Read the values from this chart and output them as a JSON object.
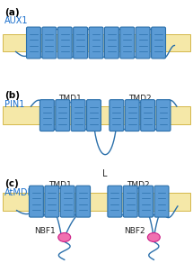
{
  "bg_color": "#ffffff",
  "membrane_color": "#f5e8a8",
  "membrane_edge_color": "#d4b84a",
  "helix_face_color": "#5b9bd5",
  "helix_edge_color": "#2a6faa",
  "loop_color": "#2a6faa",
  "nbf_color": "#f070b0",
  "nbf_edge_color": "#cc2288",
  "label_color": "#1a6fcc",
  "text_color": "#222222",
  "panel_labels": [
    "(a)",
    "(b)",
    "(c)"
  ],
  "protein_labels": [
    "AUX1",
    "PIN1",
    "AtMDR1"
  ],
  "tmd_labels_b": [
    "TMD1",
    "TMD2"
  ],
  "tmd_labels_c": [
    "TMD1",
    "TMD2"
  ],
  "loop_label": "L",
  "nbf_labels": [
    "NBF1",
    "NBF2"
  ],
  "figsize": [
    2.15,
    3.02
  ],
  "dpi": 100
}
